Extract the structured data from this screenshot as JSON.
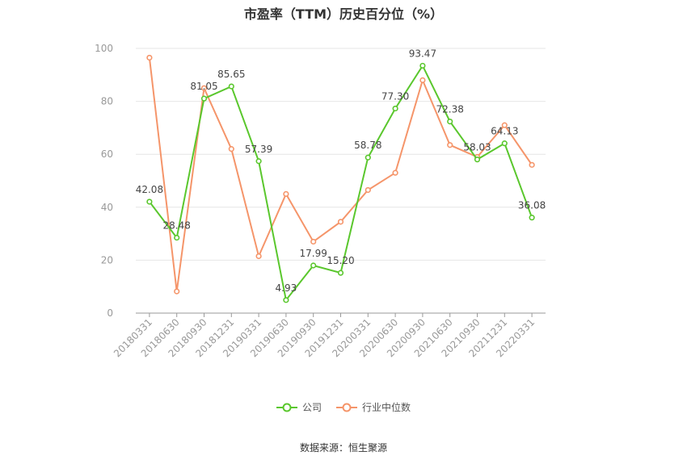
{
  "chart_data": {
    "type": "line",
    "title": "市盈率（TTM）历史百分位（%）",
    "categories": [
      "20180331",
      "20180630",
      "20180930",
      "20181231",
      "20190331",
      "20190630",
      "20190930",
      "20191231",
      "20200331",
      "20200630",
      "20200930",
      "20210630",
      "20210930",
      "20211231",
      "20220331"
    ],
    "ylim": [
      0,
      100
    ],
    "yticks": [
      0,
      20,
      40,
      60,
      80,
      100
    ],
    "grid": true,
    "legend_position": "bottom",
    "series": [
      {
        "name": "公司",
        "color": "#5ac72d",
        "values": [
          42.08,
          28.48,
          81.05,
          85.65,
          57.39,
          4.93,
          17.99,
          15.2,
          58.78,
          77.3,
          93.47,
          72.38,
          58.03,
          64.13,
          36.08
        ],
        "labels": [
          "42.08",
          "28.48",
          "81.05",
          "85.65",
          "57.39",
          "4.93",
          "17.99",
          "15.20",
          "58.78",
          "77.30",
          "93.47",
          "72.38",
          "58.03",
          "64.13",
          "36.08"
        ]
      },
      {
        "name": "行业中位数",
        "color": "#f5956a",
        "values": [
          96.5,
          8.2,
          85.0,
          62.0,
          21.5,
          45.0,
          27.0,
          34.5,
          46.5,
          53.0,
          88.0,
          63.5,
          59.0,
          71.0,
          56.0
        ]
      }
    ],
    "source": "数据来源：恒生聚源"
  }
}
